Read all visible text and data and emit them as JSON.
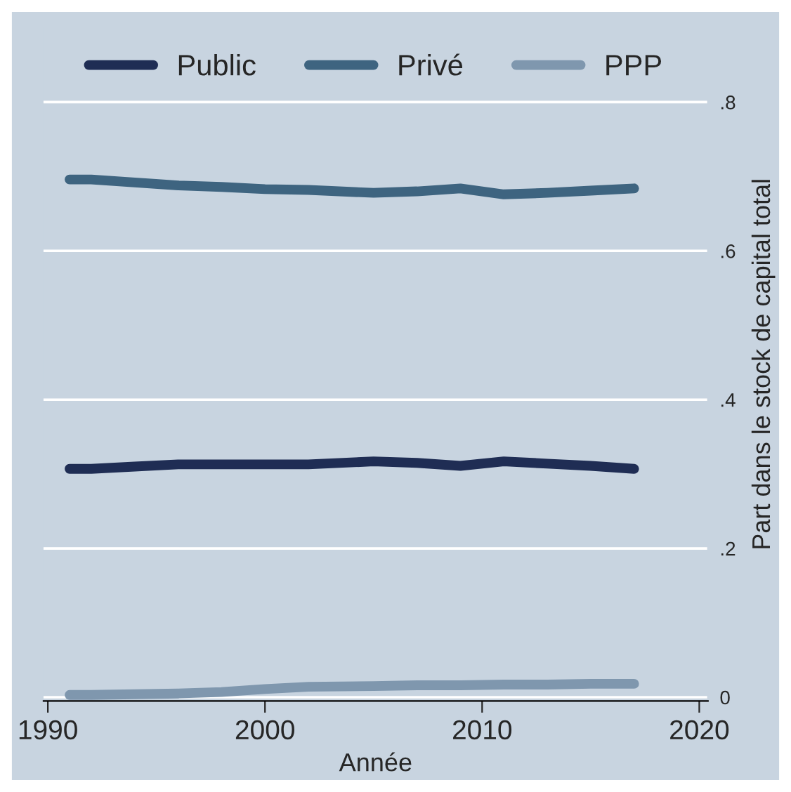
{
  "chart_data": {
    "type": "line",
    "xlabel": "Année",
    "ylabel": "Part dans le stock de capital total",
    "x": [
      1991,
      1992,
      1994,
      1996,
      1998,
      2000,
      2002,
      2005,
      2007,
      2009,
      2011,
      2013,
      2015,
      2017
    ],
    "series": [
      {
        "name": "Public",
        "color": "#1f2d54",
        "values": [
          0.307,
          0.307,
          0.31,
          0.313,
          0.313,
          0.313,
          0.313,
          0.317,
          0.315,
          0.311,
          0.317,
          0.314,
          0.311,
          0.307
        ]
      },
      {
        "name": "Privé",
        "color": "#3e6480",
        "values": [
          0.696,
          0.696,
          0.692,
          0.688,
          0.686,
          0.683,
          0.682,
          0.678,
          0.68,
          0.684,
          0.676,
          0.678,
          0.681,
          0.684
        ]
      },
      {
        "name": "PPP",
        "color": "#7f97ae",
        "values": [
          0.003,
          0.003,
          0.004,
          0.005,
          0.007,
          0.011,
          0.014,
          0.015,
          0.016,
          0.016,
          0.017,
          0.017,
          0.018,
          0.018
        ]
      }
    ],
    "xlim": [
      1989.8,
      2020.4
    ],
    "xticks": [
      1990,
      2000,
      2010,
      2020
    ],
    "ylim": [
      -0.005,
      0.9
    ],
    "yticks": [
      {
        "value": 0,
        "label": "0"
      },
      {
        "value": 0.2,
        "label": ".2"
      },
      {
        "value": 0.4,
        "label": ".4"
      },
      {
        "value": 0.6,
        "label": ".6"
      },
      {
        "value": 0.8,
        "label": ".8"
      }
    ],
    "grid": "y",
    "legend": "top",
    "marker": "none",
    "line_style": "solid"
  }
}
